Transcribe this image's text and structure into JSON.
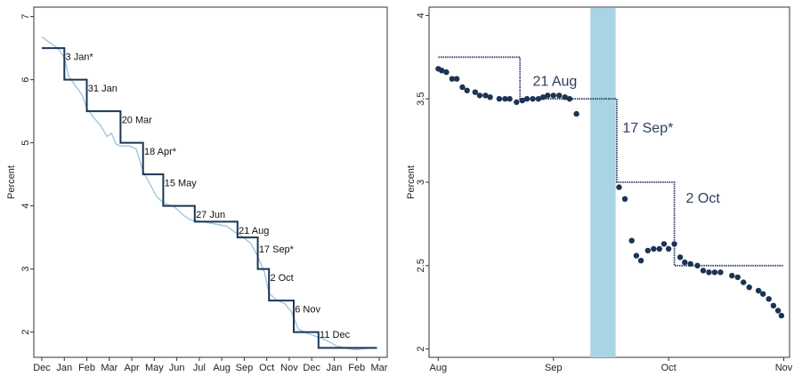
{
  "chart_data": [
    {
      "type": "line",
      "ylabel": "Percent",
      "xlabel": "",
      "ylim": [
        1.6,
        7.15
      ],
      "y_ticks": [
        "2",
        "3",
        "4",
        "5",
        "6",
        "7"
      ],
      "x_ticks": [
        "Dec",
        "Jan",
        "Feb",
        "Mar",
        "Apr",
        "May",
        "Jun",
        "Jul",
        "Aug",
        "Sep",
        "Oct",
        "Nov",
        "Dec",
        "Jan",
        "Feb",
        "Mar"
      ],
      "colors": {
        "step": "#1c3556",
        "market": "#9ec7e0"
      },
      "series": [
        {
          "points": [
            [
              0,
              6.5
            ],
            [
              1,
              6.5
            ],
            [
              1,
              6.0
            ],
            [
              2,
              6.0
            ],
            [
              2,
              5.5
            ],
            [
              3,
              5.5
            ],
            [
              3.5,
              5.5
            ],
            [
              3.5,
              5.0
            ],
            [
              4.5,
              5.0
            ],
            [
              4.5,
              4.5
            ],
            [
              5.4,
              4.5
            ],
            [
              5.4,
              4.0
            ],
            [
              6.8,
              4.0
            ],
            [
              6.8,
              3.75
            ],
            [
              8.7,
              3.75
            ],
            [
              8.7,
              3.5
            ],
            [
              9.6,
              3.5
            ],
            [
              9.6,
              3.0
            ],
            [
              10.1,
              3.0
            ],
            [
              10.1,
              2.5
            ],
            [
              11.2,
              2.5
            ],
            [
              11.2,
              2.0
            ],
            [
              12.3,
              2.0
            ],
            [
              12.3,
              1.75
            ],
            [
              14.9,
              1.75
            ]
          ]
        },
        {
          "points": [
            [
              0,
              6.68
            ],
            [
              0.3,
              6.6
            ],
            [
              0.7,
              6.5
            ],
            [
              1.0,
              6.35
            ],
            [
              1.2,
              6.05
            ],
            [
              1.5,
              5.9
            ],
            [
              1.8,
              5.75
            ],
            [
              2.0,
              5.55
            ],
            [
              2.3,
              5.4
            ],
            [
              2.6,
              5.28
            ],
            [
              2.9,
              5.1
            ],
            [
              3.1,
              5.15
            ],
            [
              3.3,
              4.98
            ],
            [
              3.5,
              4.95
            ],
            [
              3.9,
              4.95
            ],
            [
              4.2,
              4.9
            ],
            [
              4.5,
              4.55
            ],
            [
              4.8,
              4.35
            ],
            [
              5.1,
              4.15
            ],
            [
              5.4,
              4.05
            ],
            [
              5.9,
              3.98
            ],
            [
              6.3,
              3.85
            ],
            [
              6.6,
              3.78
            ],
            [
              7.0,
              3.76
            ],
            [
              7.6,
              3.72
            ],
            [
              8.2,
              3.68
            ],
            [
              8.6,
              3.58
            ],
            [
              8.9,
              3.52
            ],
            [
              9.3,
              3.4
            ],
            [
              9.6,
              3.2
            ],
            [
              9.9,
              2.95
            ],
            [
              10.1,
              2.62
            ],
            [
              10.4,
              2.52
            ],
            [
              10.8,
              2.45
            ],
            [
              11.1,
              2.32
            ],
            [
              11.4,
              2.05
            ],
            [
              11.8,
              1.98
            ],
            [
              12.3,
              1.92
            ],
            [
              12.7,
              1.86
            ],
            [
              13.1,
              1.78
            ],
            [
              13.5,
              1.75
            ],
            [
              13.9,
              1.72
            ],
            [
              14.4,
              1.74
            ],
            [
              14.9,
              1.75
            ]
          ]
        }
      ],
      "annotations": [
        {
          "text": "3 Jan*",
          "x": 1.05,
          "y": 6.35
        },
        {
          "text": "31 Jan",
          "x": 2.05,
          "y": 5.85
        },
        {
          "text": "20 Mar",
          "x": 3.55,
          "y": 5.35
        },
        {
          "text": "18 Apr*",
          "x": 4.55,
          "y": 4.85
        },
        {
          "text": "15 May",
          "x": 5.45,
          "y": 4.35
        },
        {
          "text": "27 Jun",
          "x": 6.85,
          "y": 3.85
        },
        {
          "text": "21 Aug",
          "x": 8.75,
          "y": 3.6
        },
        {
          "text": "17 Sep*",
          "x": 9.65,
          "y": 3.3
        },
        {
          "text": "2 Oct",
          "x": 10.15,
          "y": 2.85
        },
        {
          "text": "6 Nov",
          "x": 11.25,
          "y": 2.35
        },
        {
          "text": "11 Dec",
          "x": 12.35,
          "y": 1.95
        }
      ]
    },
    {
      "type": "scatter",
      "ylabel": "Percent",
      "xlabel": "",
      "ylim": [
        1.95,
        4.05
      ],
      "y_ticks": [
        "2",
        "2.5",
        "3",
        "3.5",
        "4"
      ],
      "x_ticks": [
        "Aug",
        "Sep",
        "Oct",
        "Nov"
      ],
      "colors": {
        "step": "#2c3e66",
        "dots": "#1d3354",
        "shade": "#a9d4e4"
      },
      "shaded_x_range": [
        1.32,
        1.54
      ],
      "step_series": {
        "points": [
          [
            0,
            3.75
          ],
          [
            0.71,
            3.75
          ],
          [
            0.71,
            3.5
          ],
          [
            1.55,
            3.5
          ],
          [
            1.55,
            3.0
          ],
          [
            2.05,
            3.0
          ],
          [
            2.05,
            2.5
          ],
          [
            3.0,
            2.5
          ]
        ]
      },
      "dots": [
        [
          0,
          3.68
        ],
        [
          0.03,
          3.67
        ],
        [
          0.07,
          3.66
        ],
        [
          0.12,
          3.62
        ],
        [
          0.16,
          3.62
        ],
        [
          0.21,
          3.57
        ],
        [
          0.25,
          3.55
        ],
        [
          0.32,
          3.54
        ],
        [
          0.36,
          3.52
        ],
        [
          0.41,
          3.52
        ],
        [
          0.45,
          3.51
        ],
        [
          0.53,
          3.5
        ],
        [
          0.58,
          3.5
        ],
        [
          0.62,
          3.5
        ],
        [
          0.68,
          3.48
        ],
        [
          0.73,
          3.49
        ],
        [
          0.77,
          3.5
        ],
        [
          0.82,
          3.5
        ],
        [
          0.87,
          3.5
        ],
        [
          0.91,
          3.51
        ],
        [
          0.95,
          3.52
        ],
        [
          1.0,
          3.52
        ],
        [
          1.05,
          3.52
        ],
        [
          1.1,
          3.51
        ],
        [
          1.14,
          3.5
        ],
        [
          1.2,
          3.41
        ],
        [
          1.57,
          2.97
        ],
        [
          1.62,
          2.9
        ],
        [
          1.68,
          2.65
        ],
        [
          1.72,
          2.56
        ],
        [
          1.76,
          2.53
        ],
        [
          1.82,
          2.59
        ],
        [
          1.87,
          2.6
        ],
        [
          1.92,
          2.6
        ],
        [
          1.96,
          2.63
        ],
        [
          2.0,
          2.6
        ],
        [
          2.05,
          2.63
        ],
        [
          2.1,
          2.55
        ],
        [
          2.14,
          2.52
        ],
        [
          2.19,
          2.51
        ],
        [
          2.25,
          2.5
        ],
        [
          2.3,
          2.47
        ],
        [
          2.35,
          2.46
        ],
        [
          2.4,
          2.46
        ],
        [
          2.45,
          2.46
        ],
        [
          2.55,
          2.44
        ],
        [
          2.6,
          2.43
        ],
        [
          2.65,
          2.4
        ],
        [
          2.7,
          2.37
        ],
        [
          2.78,
          2.35
        ],
        [
          2.82,
          2.33
        ],
        [
          2.87,
          2.3
        ],
        [
          2.91,
          2.26
        ],
        [
          2.95,
          2.23
        ],
        [
          2.98,
          2.2
        ]
      ],
      "annotations": [
        {
          "text": "21 Aug",
          "x": 0.82,
          "y": 3.6
        },
        {
          "text": "17 Sep*",
          "x": 1.6,
          "y": 3.32
        },
        {
          "text": "2 Oct",
          "x": 2.15,
          "y": 2.9
        }
      ]
    }
  ]
}
